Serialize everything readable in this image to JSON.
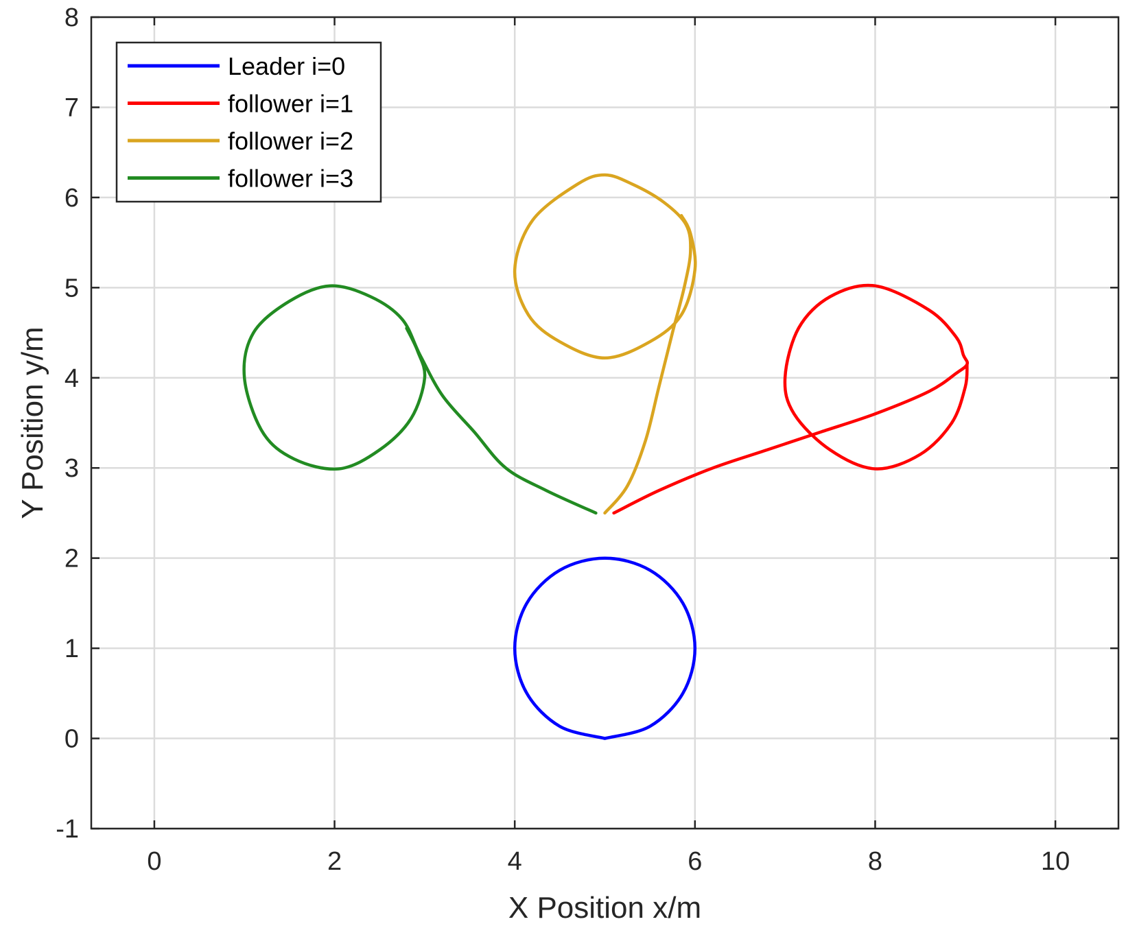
{
  "chart_data": {
    "type": "line",
    "title": "",
    "xlabel": "X Position x/m",
    "ylabel": "Y Position y/m",
    "xlim": [
      -0.7,
      10.7
    ],
    "ylim": [
      -1,
      8
    ],
    "xticks": [
      0,
      2,
      4,
      6,
      8,
      10
    ],
    "yticks": [
      -1,
      0,
      1,
      2,
      3,
      4,
      5,
      6,
      7,
      8
    ],
    "grid": true,
    "legend_position": "top-left",
    "series": [
      {
        "name": "Leader i=0",
        "color": "#0000ff",
        "points": [
          [
            5.0,
            0.0
          ],
          [
            5.5,
            0.134
          ],
          [
            5.866,
            0.5
          ],
          [
            6.0,
            1.0
          ],
          [
            5.866,
            1.5
          ],
          [
            5.5,
            1.866
          ],
          [
            5.0,
            2.0
          ],
          [
            4.5,
            1.866
          ],
          [
            4.134,
            1.5
          ],
          [
            4.0,
            1.0
          ],
          [
            4.134,
            0.5
          ],
          [
            4.5,
            0.134
          ],
          [
            5.0,
            0.0
          ]
        ]
      },
      {
        "name": "follower i=1",
        "color": "#ff0000",
        "points": [
          [
            5.1,
            2.5
          ],
          [
            5.6,
            2.75
          ],
          [
            6.2,
            3.0
          ],
          [
            6.8,
            3.2
          ],
          [
            7.4,
            3.4
          ],
          [
            8.0,
            3.6
          ],
          [
            8.6,
            3.85
          ],
          [
            8.9,
            4.05
          ],
          [
            9.02,
            4.15
          ],
          [
            8.98,
            4.25
          ],
          [
            8.9,
            4.45
          ],
          [
            8.6,
            4.75
          ],
          [
            8.0,
            5.02
          ],
          [
            7.5,
            4.9
          ],
          [
            7.15,
            4.55
          ],
          [
            7.0,
            4.0
          ],
          [
            7.1,
            3.6
          ],
          [
            7.5,
            3.2
          ],
          [
            8.0,
            2.99
          ],
          [
            8.5,
            3.15
          ],
          [
            8.85,
            3.5
          ],
          [
            9.0,
            3.9
          ],
          [
            9.02,
            4.15
          ]
        ]
      },
      {
        "name": "follower i=2",
        "color": "#daa520",
        "points": [
          [
            5.0,
            2.5
          ],
          [
            5.25,
            2.8
          ],
          [
            5.45,
            3.3
          ],
          [
            5.6,
            3.9
          ],
          [
            5.75,
            4.5
          ],
          [
            5.88,
            5.0
          ],
          [
            5.95,
            5.4
          ],
          [
            5.9,
            5.7
          ],
          [
            5.65,
            5.95
          ],
          [
            5.3,
            6.15
          ],
          [
            5.0,
            6.25
          ],
          [
            4.7,
            6.15
          ],
          [
            4.2,
            5.75
          ],
          [
            4.0,
            5.2
          ],
          [
            4.15,
            4.7
          ],
          [
            4.5,
            4.4
          ],
          [
            5.0,
            4.22
          ],
          [
            5.5,
            4.4
          ],
          [
            5.85,
            4.7
          ],
          [
            6.0,
            5.2
          ],
          [
            5.95,
            5.6
          ],
          [
            5.85,
            5.8
          ]
        ]
      },
      {
        "name": "follower i=3",
        "color": "#228b22",
        "points": [
          [
            4.9,
            2.5
          ],
          [
            4.35,
            2.75
          ],
          [
            3.9,
            3.0
          ],
          [
            3.55,
            3.4
          ],
          [
            3.2,
            3.8
          ],
          [
            2.95,
            4.25
          ],
          [
            2.75,
            4.65
          ],
          [
            2.4,
            4.9
          ],
          [
            1.95,
            5.02
          ],
          [
            1.5,
            4.85
          ],
          [
            1.1,
            4.5
          ],
          [
            1.0,
            4.0
          ],
          [
            1.2,
            3.4
          ],
          [
            1.55,
            3.1
          ],
          [
            2.05,
            2.99
          ],
          [
            2.5,
            3.2
          ],
          [
            2.85,
            3.55
          ],
          [
            3.0,
            4.0
          ],
          [
            2.92,
            4.3
          ],
          [
            2.8,
            4.55
          ]
        ]
      }
    ]
  }
}
